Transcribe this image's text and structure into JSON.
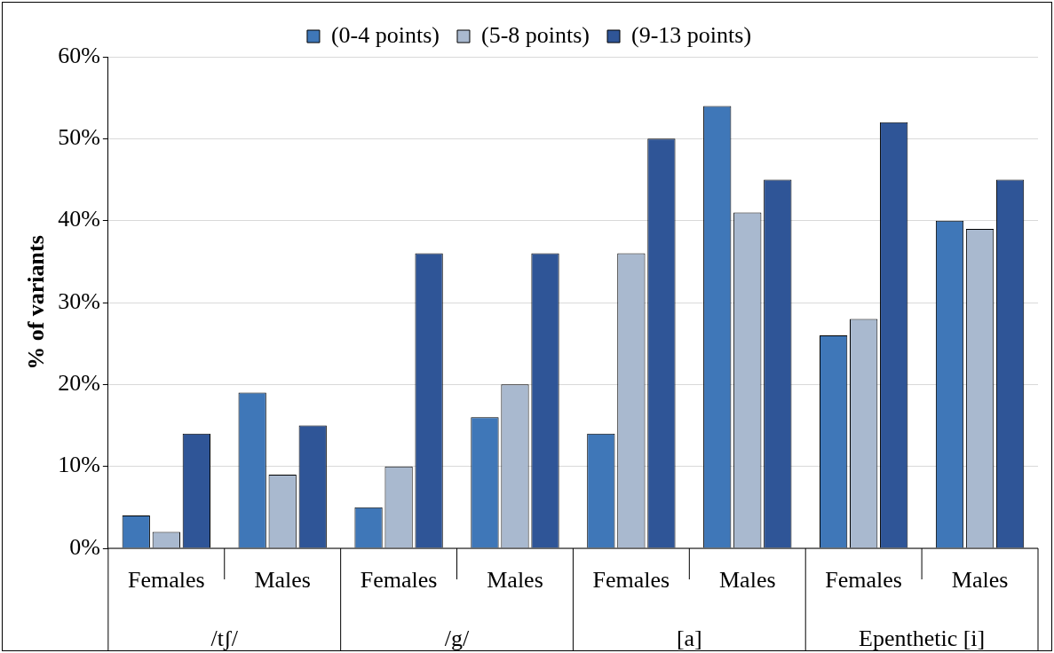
{
  "chart_data": {
    "type": "bar",
    "ylabel": "% of variants",
    "categories": [
      "Females",
      "Males",
      "Females",
      "Males",
      "Females",
      "Males",
      "Females",
      "Males"
    ],
    "annotations": [
      "/tʃ/",
      "/g/",
      "[a]",
      "Epenthetic [i]"
    ],
    "series": [
      {
        "name": "(0-4 points)",
        "color": "#3f77b8",
        "values": [
          4,
          19,
          5,
          16,
          14,
          54,
          26,
          40
        ]
      },
      {
        "name": "(5-8 points)",
        "color": "#a9b9cf",
        "values": [
          2,
          9,
          10,
          20,
          36,
          41,
          28,
          39
        ]
      },
      {
        "name": "(9-13 points)",
        "color": "#2f5597",
        "values": [
          14,
          15,
          36,
          36,
          50,
          45,
          52,
          45
        ]
      }
    ],
    "ylim": [
      0,
      60
    ],
    "yticks": [
      {
        "value": 0,
        "label": "0%"
      },
      {
        "value": 10,
        "label": "10%"
      },
      {
        "value": 20,
        "label": "20%"
      },
      {
        "value": 30,
        "label": "30%"
      },
      {
        "value": 40,
        "label": "40%"
      },
      {
        "value": 50,
        "label": "50%"
      },
      {
        "value": 60,
        "label": "60%"
      }
    ],
    "grid": "y",
    "legend": "top"
  }
}
